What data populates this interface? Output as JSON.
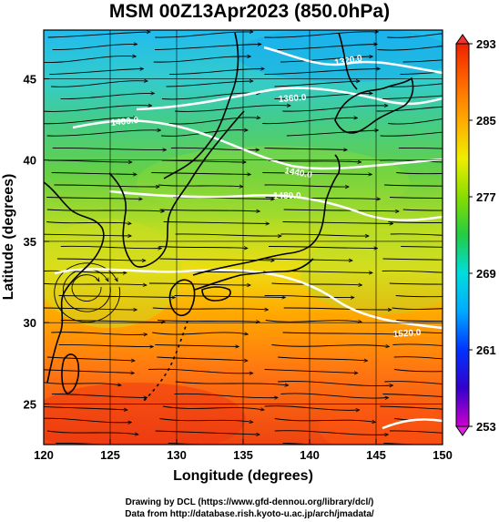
{
  "title": "MSM 00Z13Apr2023 (850.0hPa)",
  "xaxis": {
    "label": "Longitude (degrees)",
    "range": [
      120,
      150
    ],
    "ticks": [
      "120",
      "125",
      "130",
      "135",
      "140",
      "145",
      "150"
    ]
  },
  "yaxis": {
    "label": "Latitude  (degrees)",
    "range": [
      22.5,
      48
    ],
    "ticks": [
      "25",
      "30",
      "35",
      "40",
      "45"
    ]
  },
  "colorbar": {
    "min": 253,
    "max": 293,
    "ticks": [
      "293",
      "285",
      "277",
      "269",
      "261",
      "253"
    ],
    "colors": [
      "#cc00cc",
      "#3300cc",
      "#0033ff",
      "#00aaff",
      "#00dddd",
      "#22cc44",
      "#88dd00",
      "#eeee00",
      "#ffaa00",
      "#ff6600",
      "#ee2200"
    ]
  },
  "contours": [
    {
      "label": "1320.0"
    },
    {
      "label": "1360.0"
    },
    {
      "label": "1400.0"
    },
    {
      "label": "1440.0"
    },
    {
      "label": "1480.0"
    },
    {
      "label": "1520.0"
    }
  ],
  "credits": {
    "line1": "Drawing by DCL (https://www.gfd-dennou.org/library/dcl/)",
    "line2": "Data from http://database.rish.kyoto-u.ac.jp/arch/jmadata/"
  }
}
